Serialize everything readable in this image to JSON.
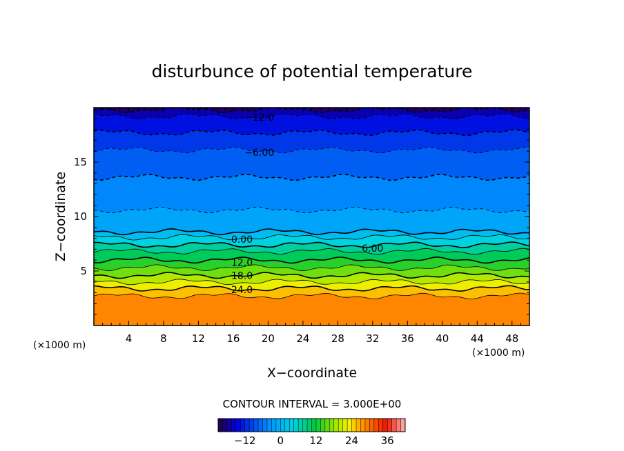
{
  "chart_data": {
    "type": "contour",
    "title": "disturbunce of potential temperature",
    "xlabel": "X−coordinate",
    "ylabel": "Z−coordinate",
    "x_unit_left": "(×1000 m)",
    "x_unit_right": "(×1000 m)",
    "xlim": [
      0,
      50
    ],
    "ylim": [
      0,
      20
    ],
    "x_ticks": [
      4,
      8,
      12,
      16,
      20,
      24,
      28,
      32,
      36,
      40,
      44,
      48
    ],
    "x_tick_labels": [
      "4",
      "8",
      "12",
      "16",
      "20",
      "24",
      "28",
      "32",
      "36",
      "40",
      "44",
      "48"
    ],
    "y_ticks": [
      5,
      10,
      15
    ],
    "y_tick_labels": [
      "5",
      "10",
      "15"
    ],
    "contour_interval_text": "CONTOUR INTERVAL = 3.000E+00",
    "contour_interval": 3,
    "contour_labels": [
      {
        "text": "−12.0",
        "x": 19.0,
        "z": 19.1
      },
      {
        "text": "−6.00",
        "x": 19.0,
        "z": 15.9
      },
      {
        "text": "0.00",
        "x": 17.0,
        "z": 7.9
      },
      {
        "text": "6.00",
        "x": 32.0,
        "z": 7.1
      },
      {
        "text": "12.0",
        "x": 17.0,
        "z": 5.8
      },
      {
        "text": "18.0",
        "x": 17.0,
        "z": 4.6
      },
      {
        "text": "24.0",
        "x": 17.0,
        "z": 3.3
      }
    ],
    "levels": [
      -18,
      -15,
      -12,
      -9,
      -6,
      -3,
      0,
      3,
      6,
      9,
      12,
      15,
      18,
      21,
      24,
      27
    ],
    "colorbar": {
      "range": [
        -21,
        42
      ],
      "tick_values": [
        -12,
        0,
        12,
        24,
        36
      ],
      "tick_labels": [
        "−12",
        "0",
        "12",
        "24",
        "36"
      ]
    }
  }
}
